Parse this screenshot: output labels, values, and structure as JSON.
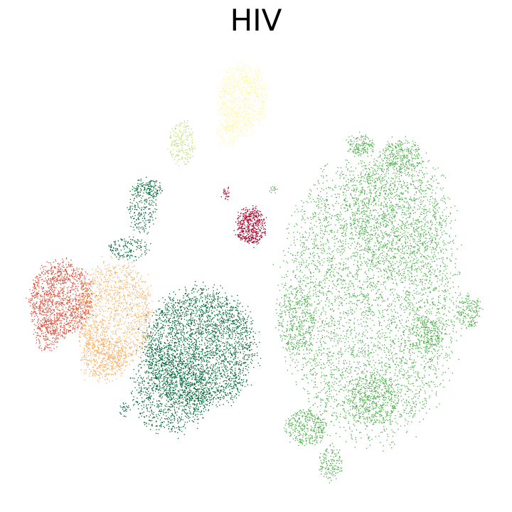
{
  "chart_data": {
    "type": "scatter",
    "title": "HIV",
    "xlabel": "",
    "ylabel": "",
    "axes_visible": false,
    "grid": false,
    "legend": "none",
    "series": [
      {
        "color": "#4daf4a",
        "clusters": [
          {
            "cx": 520,
            "cy": 420,
            "rx": 125,
            "ry": 200,
            "n": 4500
          },
          {
            "cx": 560,
            "cy": 300,
            "rx": 75,
            "ry": 90,
            "n": 900
          },
          {
            "cx": 505,
            "cy": 205,
            "rx": 18,
            "ry": 15,
            "n": 150
          },
          {
            "cx": 565,
            "cy": 220,
            "rx": 30,
            "ry": 25,
            "n": 300
          },
          {
            "cx": 600,
            "cy": 470,
            "rx": 22,
            "ry": 25,
            "n": 200
          },
          {
            "cx": 658,
            "cy": 438,
            "rx": 18,
            "ry": 22,
            "n": 180
          },
          {
            "cx": 430,
            "cy": 600,
            "rx": 30,
            "ry": 25,
            "n": 350
          },
          {
            "cx": 465,
            "cy": 650,
            "rx": 18,
            "ry": 25,
            "n": 150
          },
          {
            "cx": 525,
            "cy": 560,
            "rx": 35,
            "ry": 35,
            "n": 400
          },
          {
            "cx": 415,
            "cy": 450,
            "rx": 25,
            "ry": 50,
            "n": 300
          },
          {
            "cx": 384,
            "cy": 266,
            "rx": 4,
            "ry": 4,
            "n": 15
          }
        ]
      },
      {
        "color": "#006837",
        "clusters": [
          {
            "cx": 280,
            "cy": 490,
            "rx": 80,
            "ry": 85,
            "n": 3000
          },
          {
            "cx": 240,
            "cy": 550,
            "rx": 55,
            "ry": 60,
            "n": 900
          },
          {
            "cx": 200,
            "cy": 290,
            "rx": 20,
            "ry": 40,
            "n": 250
          },
          {
            "cx": 180,
            "cy": 350,
            "rx": 30,
            "ry": 15,
            "n": 150
          },
          {
            "cx": 215,
            "cy": 265,
            "rx": 10,
            "ry": 14,
            "n": 80
          },
          {
            "cx": 175,
            "cy": 575,
            "rx": 8,
            "ry": 10,
            "n": 30
          }
        ]
      },
      {
        "color": "#e34a33",
        "clusters": [
          {
            "cx": 85,
            "cy": 420,
            "rx": 45,
            "ry": 55,
            "n": 1300
          },
          {
            "cx": 65,
            "cy": 470,
            "rx": 18,
            "ry": 25,
            "n": 150
          }
        ]
      },
      {
        "color": "#fdae61",
        "clusters": [
          {
            "cx": 160,
            "cy": 440,
            "rx": 55,
            "ry": 75,
            "n": 1300
          },
          {
            "cx": 145,
            "cy": 505,
            "rx": 35,
            "ry": 30,
            "n": 400
          }
        ]
      },
      {
        "color": "#fff7a8",
        "clusters": [
          {
            "cx": 340,
            "cy": 140,
            "rx": 35,
            "ry": 50,
            "n": 800
          },
          {
            "cx": 320,
            "cy": 185,
            "rx": 15,
            "ry": 20,
            "n": 100
          }
        ]
      },
      {
        "color": "#b8e06a",
        "clusters": [
          {
            "cx": 255,
            "cy": 200,
            "rx": 18,
            "ry": 32,
            "n": 180
          }
        ]
      },
      {
        "color": "#a50026",
        "clusters": [
          {
            "cx": 352,
            "cy": 318,
            "rx": 20,
            "ry": 26,
            "n": 500
          },
          {
            "cx": 318,
            "cy": 272,
            "rx": 6,
            "ry": 8,
            "n": 30
          }
        ]
      }
    ]
  }
}
